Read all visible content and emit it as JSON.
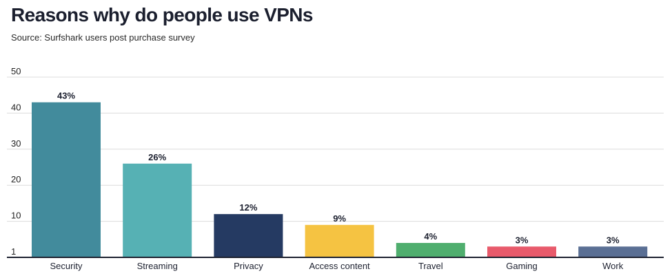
{
  "chart_data": {
    "type": "bar",
    "title": "Reasons why do people use VPNs",
    "subtitle": "Source: Surfshark users post purchase survey",
    "xlabel": "",
    "ylabel": "",
    "categories": [
      "Security",
      "Streaming",
      "Privacy",
      "Access content",
      "Travel",
      "Gaming",
      "Work"
    ],
    "values": [
      43,
      26,
      12,
      9,
      4,
      3,
      3
    ],
    "data_labels": [
      "43%",
      "26%",
      "12%",
      "9%",
      "4%",
      "3%",
      "3%"
    ],
    "colors": [
      "#428b9c",
      "#56b1b4",
      "#253a62",
      "#f5c342",
      "#4fae6e",
      "#e85a6b",
      "#5a6f94"
    ],
    "yticks": [
      1,
      10,
      20,
      30,
      40,
      50
    ],
    "ylim": [
      0,
      50
    ],
    "grid": true,
    "legend": "none"
  }
}
